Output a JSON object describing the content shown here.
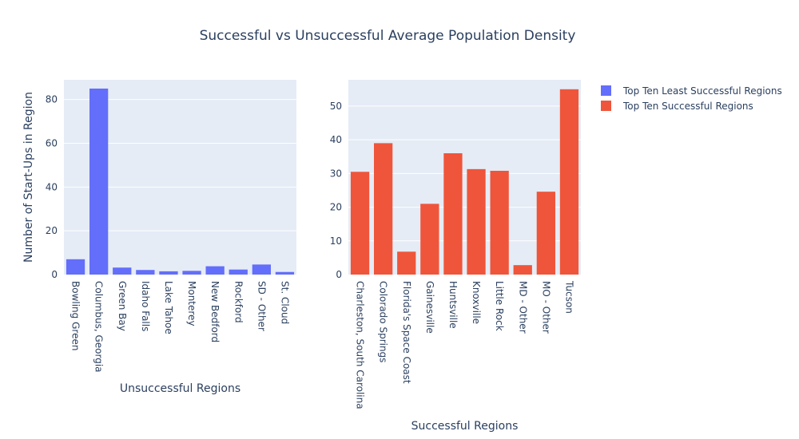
{
  "chart_data": {
    "type": "bar",
    "title": "Successful vs Unsuccessful Average Population Density",
    "colors": {
      "unsuccessful": "#636efa",
      "successful": "#ef553b",
      "plot_bg": "#e5ecf6",
      "text": "#2a3f5f"
    },
    "grid": true,
    "legend_placement": "top-right",
    "legend": [
      "Top Ten Least Successful Regions",
      "Top Ten Successful Regions"
    ],
    "subplots": [
      {
        "series_name": "Top Ten Least Successful Regions",
        "color": "#636efa",
        "xlabel": "Unsuccessful Regions",
        "ylabel": "Number of Start-Ups in Region",
        "ylim": [
          0,
          89
        ],
        "yticks": [
          0,
          20,
          40,
          60,
          80
        ],
        "categories": [
          "Bowling Green",
          "Columbus, Georgia",
          "Green Bay",
          "Idaho Falls",
          "Lake Tahoe",
          "Monterey",
          "New Bedford",
          "Rockford",
          "SD - Other",
          "St. Cloud"
        ],
        "values": [
          7,
          85,
          3.2,
          2.1,
          1.5,
          1.7,
          3.8,
          2.3,
          4.6,
          1.2
        ]
      },
      {
        "series_name": "Top Ten Successful Regions",
        "color": "#ef553b",
        "xlabel": "Successful Regions",
        "ylabel": "",
        "ylim": [
          0,
          57.8
        ],
        "yticks": [
          0,
          10,
          20,
          30,
          40,
          50
        ],
        "categories": [
          "Charleston, South Carolina",
          "Colorado Springs",
          "Florida's Space Coast",
          "Gainesville",
          "Huntsville",
          "Knoxville",
          "Little Rock",
          "MD - Other",
          "MO - Other",
          "Tucson"
        ],
        "values": [
          30.5,
          39,
          6.8,
          21,
          36,
          31.3,
          30.8,
          2.8,
          24.6,
          55
        ]
      }
    ]
  }
}
